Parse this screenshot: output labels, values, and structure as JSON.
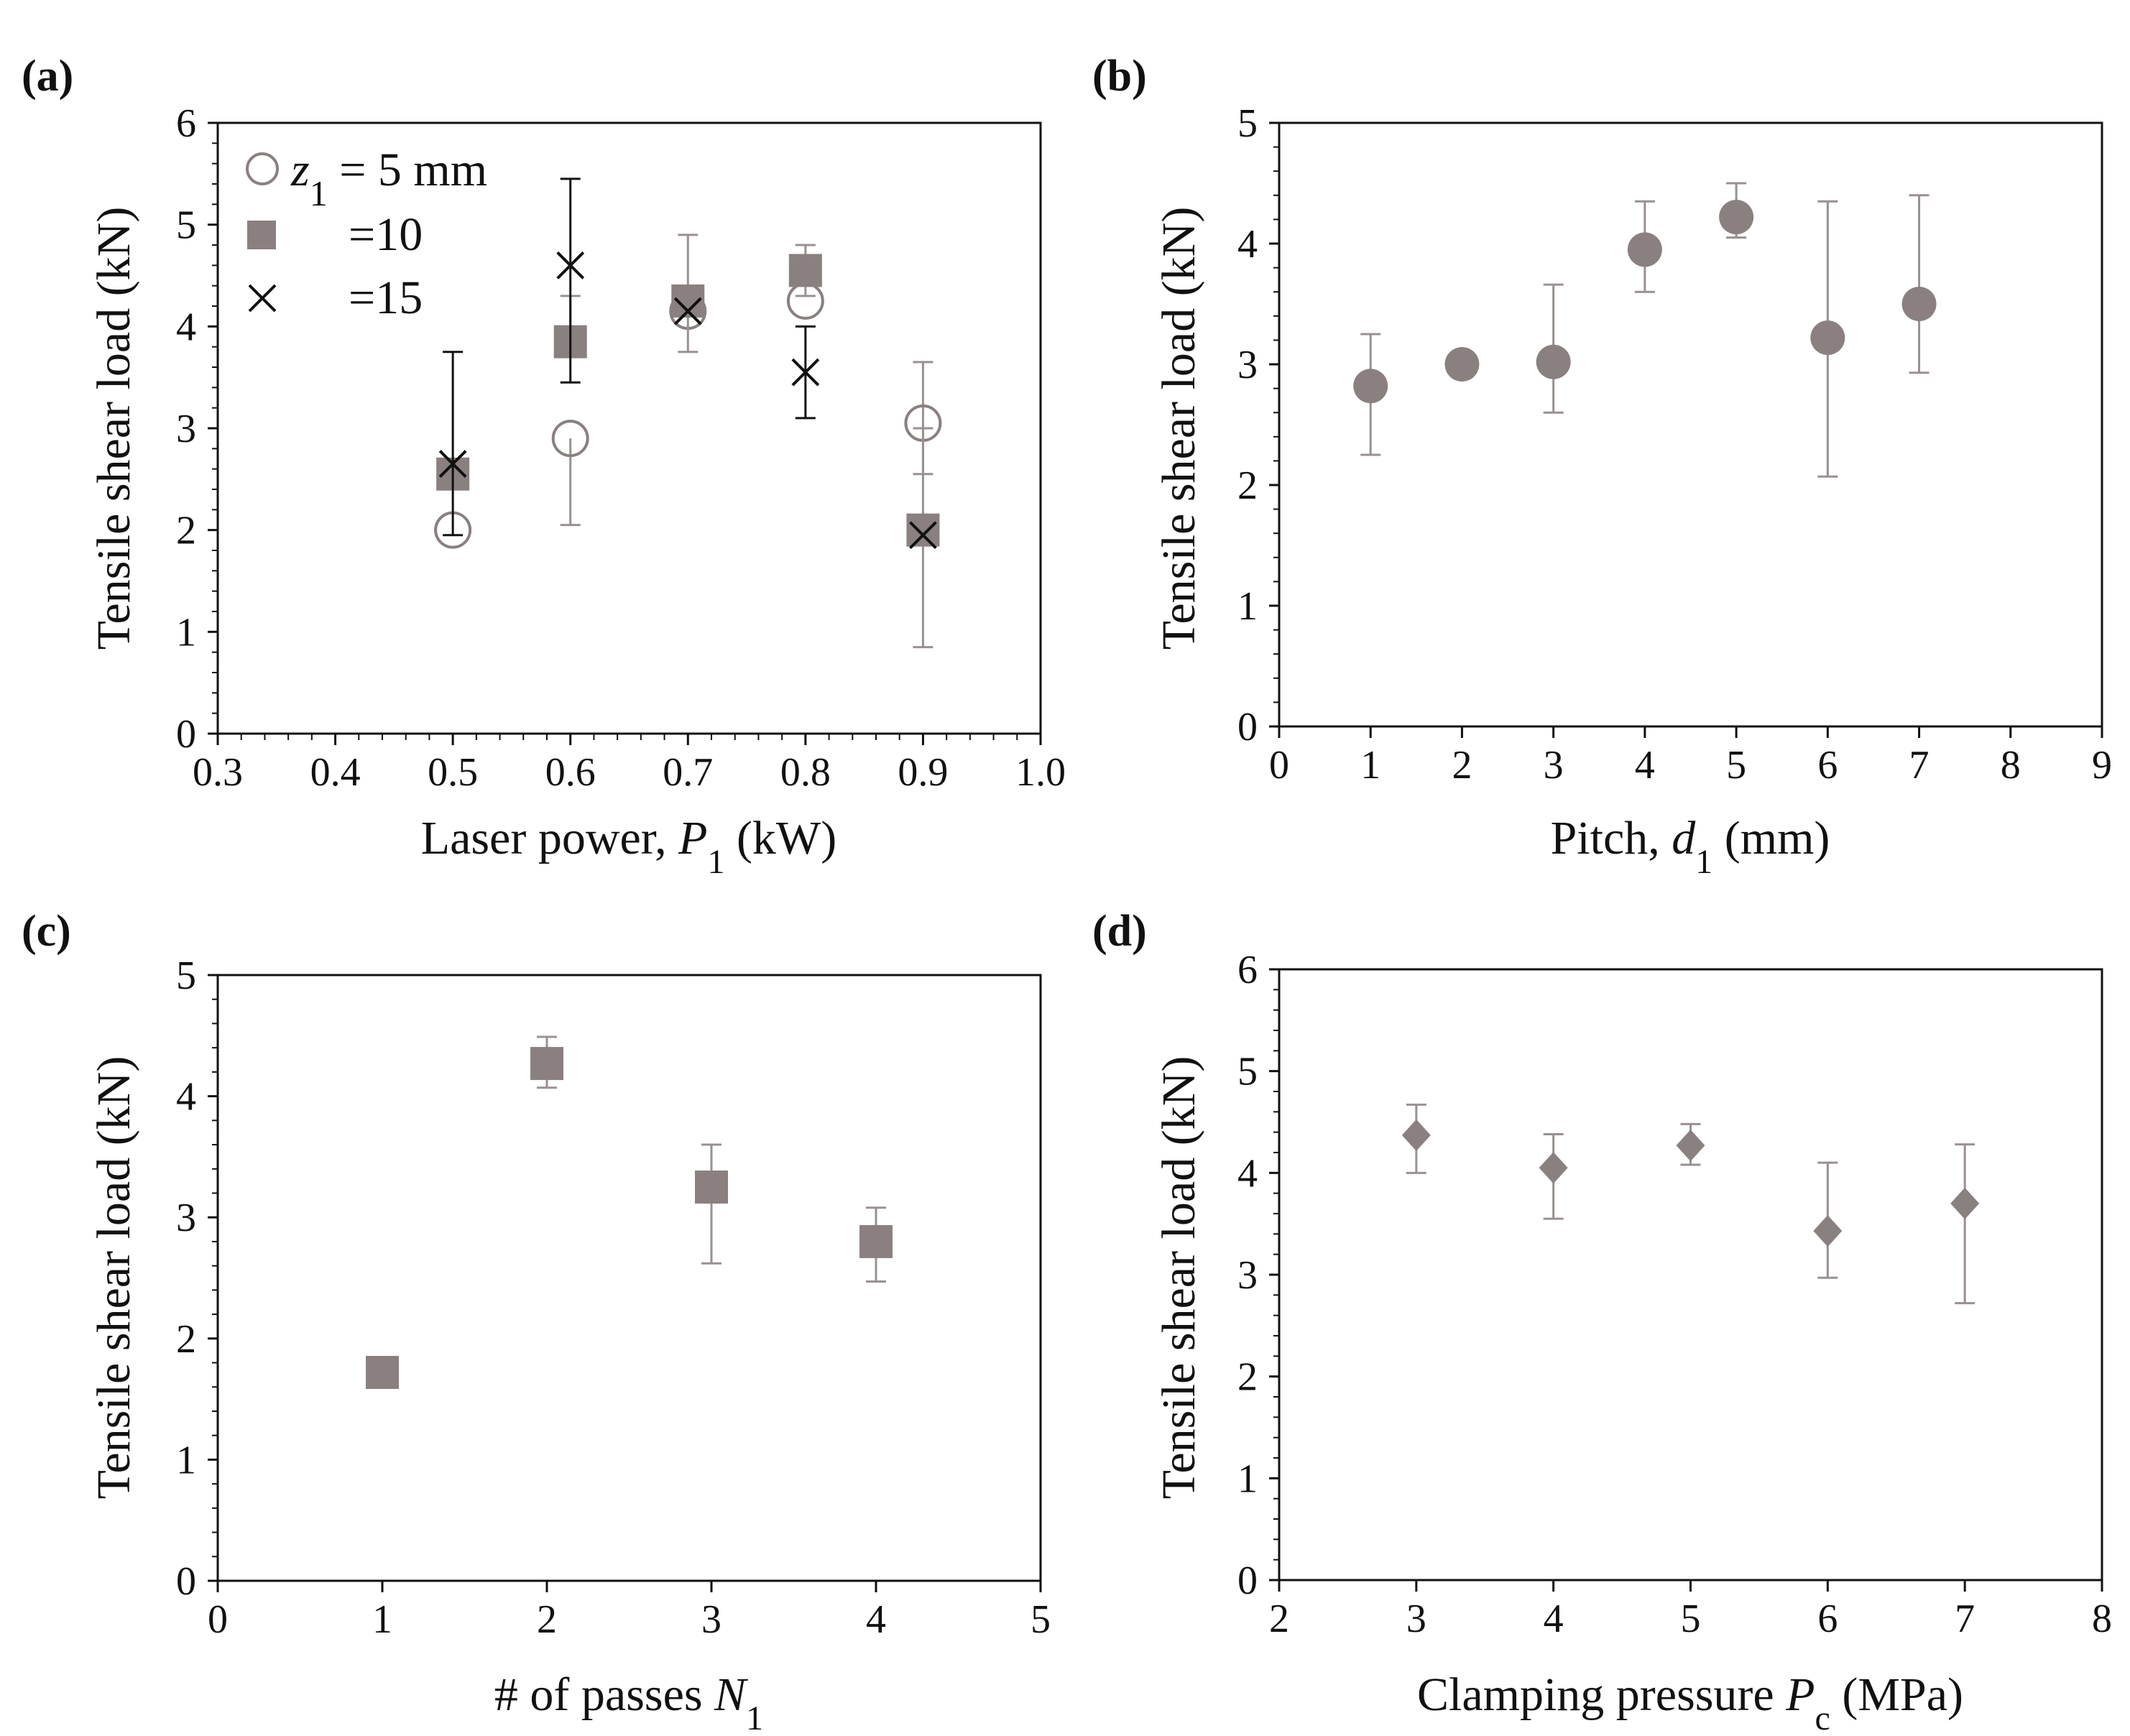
{
  "colors": {
    "marker": "#8a8080",
    "error_bar": "#9a9090",
    "dark": "#111111",
    "axis": "#111111"
  },
  "chart_data": [
    {
      "id": "a",
      "panel_label": "(a)",
      "type": "scatter",
      "xlabel_main": "Laser power, ",
      "xlabel_var": "P",
      "xlabel_sub": "1",
      "xlabel_unit": " (kW)",
      "ylabel": "Tensile shear load (kN)",
      "xlim": [
        0.3,
        1.0
      ],
      "ylim": [
        0,
        6
      ],
      "xticks": [
        0.3,
        0.4,
        0.5,
        0.6,
        0.7,
        0.8,
        0.9,
        1.0
      ],
      "xtick_labels": [
        "0.3",
        "0.4",
        "0.5",
        "0.6",
        "0.7",
        "0.8",
        "0.9",
        "1.0"
      ],
      "yticks": [
        0,
        1,
        2,
        3,
        4,
        5,
        6
      ],
      "ytick_labels": [
        "0",
        "1",
        "2",
        "3",
        "4",
        "5",
        "6"
      ],
      "legend_position": "top-left",
      "legend": {
        "z_var": "z",
        "z_sub": "1",
        "first_label": " = 5 mm",
        "second_label": "=10",
        "third_label": "=15"
      },
      "series": [
        {
          "name": "z1 = 5 mm",
          "marker": "circle-open",
          "color_key": "marker",
          "x": [
            0.5,
            0.6,
            0.7,
            0.8,
            0.9
          ],
          "y": [
            2.0,
            2.9,
            4.15,
            4.25,
            3.05
          ],
          "err_low": [
            null,
            2.05,
            null,
            null,
            2.55
          ],
          "err_high": [
            null,
            null,
            null,
            null,
            3.65
          ]
        },
        {
          "name": "=10",
          "marker": "square",
          "color_key": "marker",
          "x": [
            0.5,
            0.6,
            0.7,
            0.8,
            0.9
          ],
          "y": [
            2.55,
            3.85,
            4.25,
            4.55,
            2.0
          ],
          "err_low": [
            null,
            null,
            3.75,
            4.3,
            0.85
          ],
          "err_high": [
            null,
            4.3,
            4.9,
            4.8,
            3.0
          ]
        },
        {
          "name": "=15",
          "marker": "cross",
          "color_key": "dark",
          "x": [
            0.5,
            0.6,
            0.7,
            0.8,
            0.9
          ],
          "y": [
            2.65,
            4.6,
            4.15,
            3.55,
            1.95
          ],
          "err_low": [
            1.95,
            3.45,
            null,
            3.1,
            null
          ],
          "err_high": [
            3.75,
            5.45,
            null,
            4.0,
            null
          ]
        }
      ]
    },
    {
      "id": "b",
      "panel_label": "(b)",
      "type": "scatter",
      "xlabel_main": "Pitch, ",
      "xlabel_var": "d",
      "xlabel_sub": "1",
      "xlabel_unit": " (mm)",
      "ylabel": "Tensile shear load (kN)",
      "xlim": [
        0,
        9
      ],
      "ylim": [
        0,
        5
      ],
      "xticks": [
        0,
        1,
        2,
        3,
        4,
        5,
        6,
        7,
        8,
        9
      ],
      "xtick_labels": [
        "0",
        "1",
        "2",
        "3",
        "4",
        "5",
        "6",
        "7",
        "8",
        "9"
      ],
      "yticks": [
        0,
        1,
        2,
        3,
        4,
        5
      ],
      "ytick_labels": [
        "0",
        "1",
        "2",
        "3",
        "4",
        "5"
      ],
      "series": [
        {
          "name": "pitch",
          "marker": "circle-filled",
          "color_key": "marker",
          "x": [
            1,
            2,
            3,
            4,
            5,
            6,
            7
          ],
          "y": [
            2.82,
            3.0,
            3.02,
            3.95,
            4.22,
            3.22,
            3.5
          ],
          "err_low": [
            2.25,
            null,
            2.6,
            3.6,
            4.05,
            2.07,
            2.93
          ],
          "err_high": [
            3.25,
            null,
            3.66,
            4.35,
            4.5,
            4.35,
            4.4
          ]
        }
      ]
    },
    {
      "id": "c",
      "panel_label": "(c)",
      "type": "scatter",
      "xlabel_main": "# of passes ",
      "xlabel_var": "N",
      "xlabel_sub": "1",
      "xlabel_unit": "",
      "ylabel": "Tensile shear load (kN)",
      "xlim": [
        0,
        5
      ],
      "ylim": [
        0,
        5
      ],
      "xticks": [
        0,
        1,
        2,
        3,
        4,
        5
      ],
      "xtick_labels": [
        "0",
        "1",
        "2",
        "3",
        "4",
        "5"
      ],
      "yticks": [
        0,
        1,
        2,
        3,
        4,
        5
      ],
      "ytick_labels": [
        "0",
        "1",
        "2",
        "3",
        "4",
        "5"
      ],
      "series": [
        {
          "name": "passes",
          "marker": "square",
          "color_key": "marker",
          "x": [
            1,
            2,
            3,
            4
          ],
          "y": [
            1.72,
            4.27,
            3.25,
            2.8
          ],
          "err_low": [
            null,
            4.07,
            2.62,
            2.47
          ],
          "err_high": [
            null,
            4.49,
            3.6,
            3.08
          ]
        }
      ]
    },
    {
      "id": "d",
      "panel_label": "(d)",
      "type": "scatter",
      "xlabel_main": "Clamping  pressure ",
      "xlabel_var": "P",
      "xlabel_sub": "c",
      "xlabel_unit": " (MPa)",
      "ylabel": "Tensile shear load (kN)",
      "xlim": [
        2,
        8
      ],
      "ylim": [
        0,
        6
      ],
      "xticks": [
        2,
        3,
        4,
        5,
        6,
        7,
        8
      ],
      "xtick_labels": [
        "2",
        "3",
        "4",
        "5",
        "6",
        "7",
        "8"
      ],
      "yticks": [
        0,
        1,
        2,
        3,
        4,
        5,
        6
      ],
      "ytick_labels": [
        "0",
        "1",
        "2",
        "3",
        "4",
        "5",
        "6"
      ],
      "series": [
        {
          "name": "pressure",
          "marker": "diamond",
          "color_key": "marker",
          "x": [
            3,
            4,
            5,
            6,
            7
          ],
          "y": [
            4.37,
            4.05,
            4.27,
            3.43,
            3.7
          ],
          "err_low": [
            4.0,
            3.55,
            4.08,
            2.97,
            2.72
          ],
          "err_high": [
            4.67,
            4.38,
            4.48,
            4.1,
            4.28
          ]
        }
      ]
    }
  ]
}
